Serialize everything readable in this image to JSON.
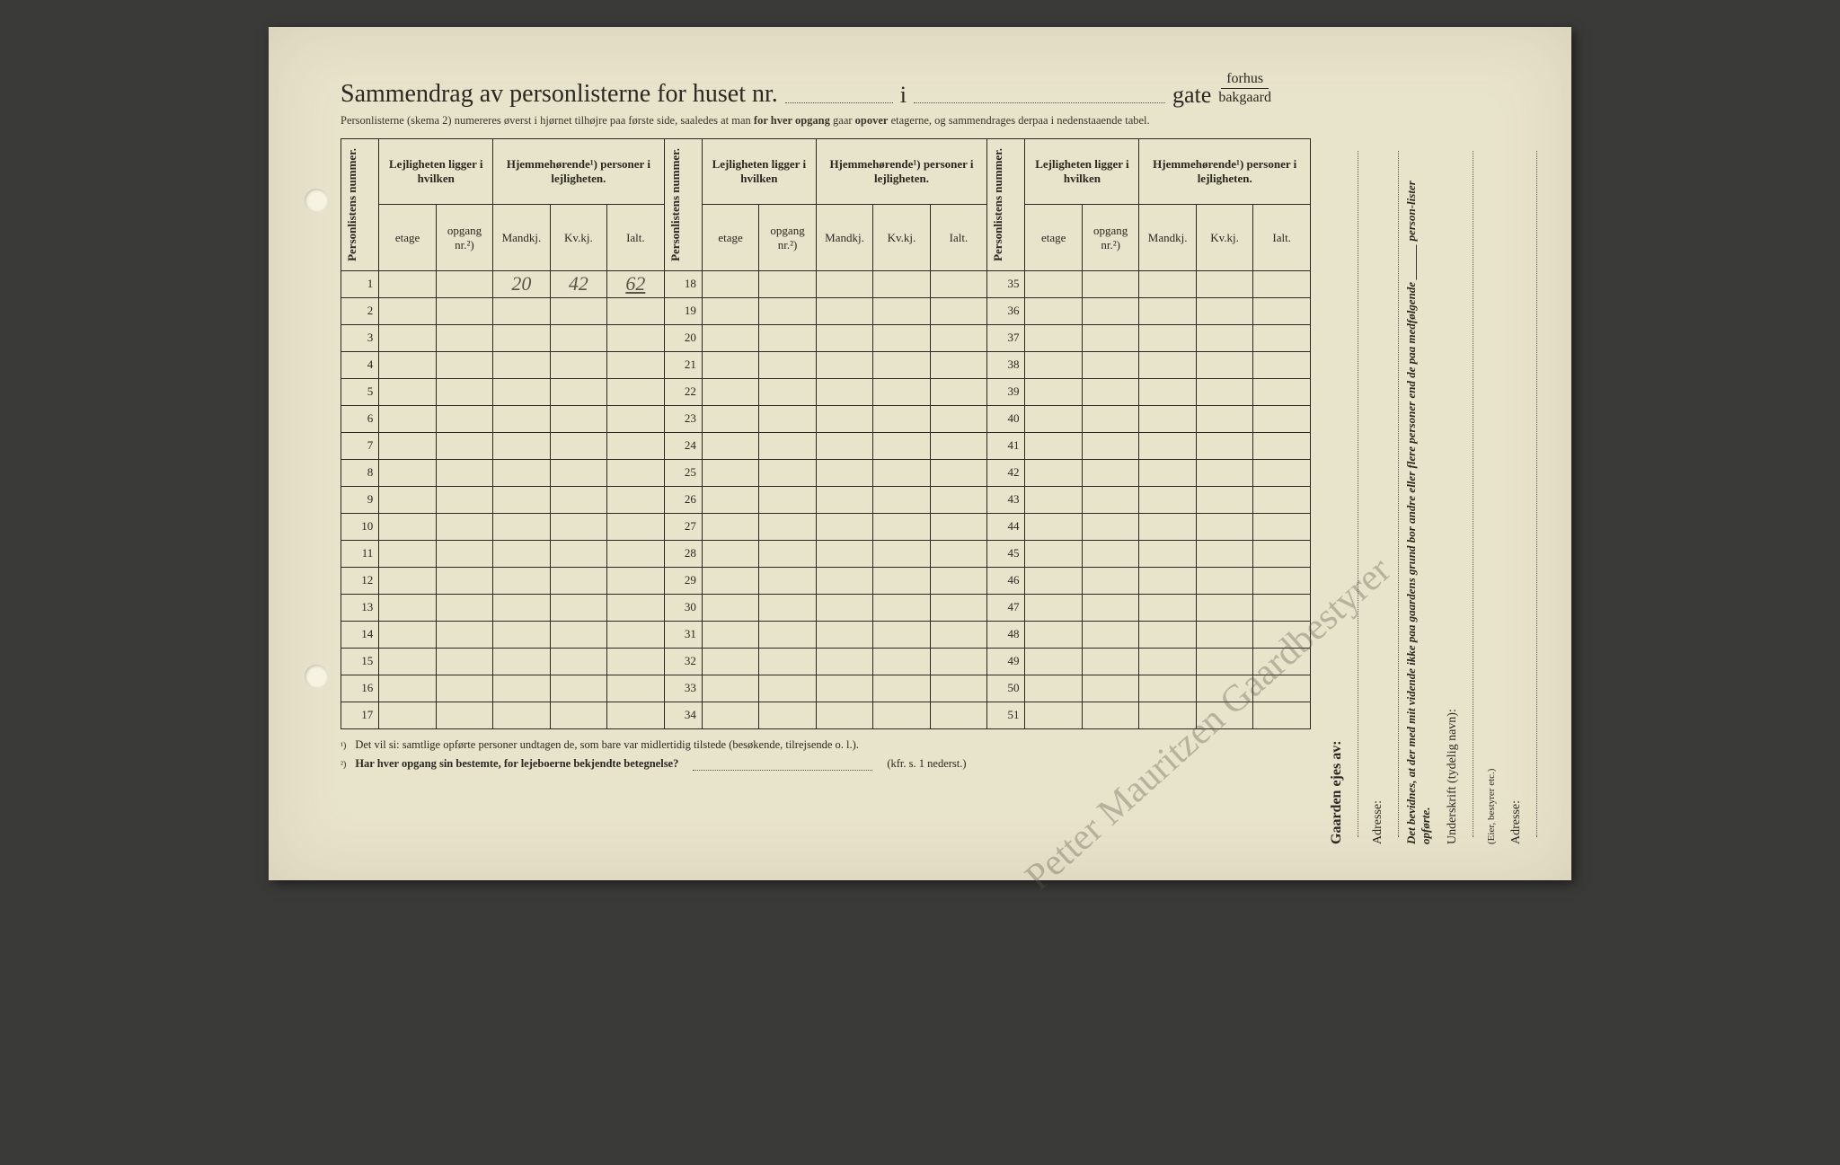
{
  "title": {
    "main": "Sammendrag av personlisterne for huset nr.",
    "i": "i",
    "gate": "gate",
    "forhus": "forhus",
    "bakgaard": "bakgaard"
  },
  "subnote": {
    "pre": "Personlisterne (skema 2) numereres øverst i hjørnet tilhøjre paa første side, saaledes at man ",
    "b1": "for hver opgang",
    "mid": " gaar ",
    "b2": "opover",
    "post": " etagerne, og sammendrages derpaa i nedenstaaende tabel."
  },
  "headers": {
    "personlistens": "Personlistens nummer.",
    "lejligheten": "Lejligheten ligger i hvilken",
    "hjemme": "Hjemmehørende¹) personer i lejligheten.",
    "etage": "etage",
    "opgang": "opgang nr.²)",
    "mandkj": "Mandkj.",
    "kvkj": "Kv.kj.",
    "ialt": "Ialt."
  },
  "rows": {
    "block1": [
      1,
      2,
      3,
      4,
      5,
      6,
      7,
      8,
      9,
      10,
      11,
      12,
      13,
      14,
      15,
      16,
      17
    ],
    "block2": [
      18,
      19,
      20,
      21,
      22,
      23,
      24,
      25,
      26,
      27,
      28,
      29,
      30,
      31,
      32,
      33,
      34
    ],
    "block3": [
      35,
      36,
      37,
      38,
      39,
      40,
      41,
      42,
      43,
      44,
      45,
      46,
      47,
      48,
      49,
      50,
      51
    ]
  },
  "handwritten": {
    "r1_mandkj": "20",
    "r1_kvkj": "42",
    "r1_ialt": "62",
    "signature": "Petter Mauritzen Gaardbestyrer"
  },
  "footnotes": {
    "f1_marker": "¹)",
    "f1": "Det vil si: samtlige opførte personer undtagen de, som bare var midlertidig tilstede (besøkende, tilrejsende o. l.).",
    "f2_marker": "²)",
    "f2": "Har hver opgang sin bestemte, for lejeboerne bekjendte betegnelse?",
    "f2_ref": "(kfr. s. 1 nederst.)"
  },
  "side": {
    "owner": "Gaarden ejes av:",
    "adresse": "Adresse:",
    "bevidnes": "Det bevidnes, at der med mit vidende ikke paa gaardens grund bor andre eller flere personer end de paa medfølgende ______ person-lister opførte.",
    "underskrift": "Underskrift (tydelig navn):",
    "eier": "(Eier, bestyrer etc.)"
  },
  "style": {
    "paper_bg": "#e8e3cb",
    "ink": "#2a2820",
    "pencil": "#5a5548"
  }
}
